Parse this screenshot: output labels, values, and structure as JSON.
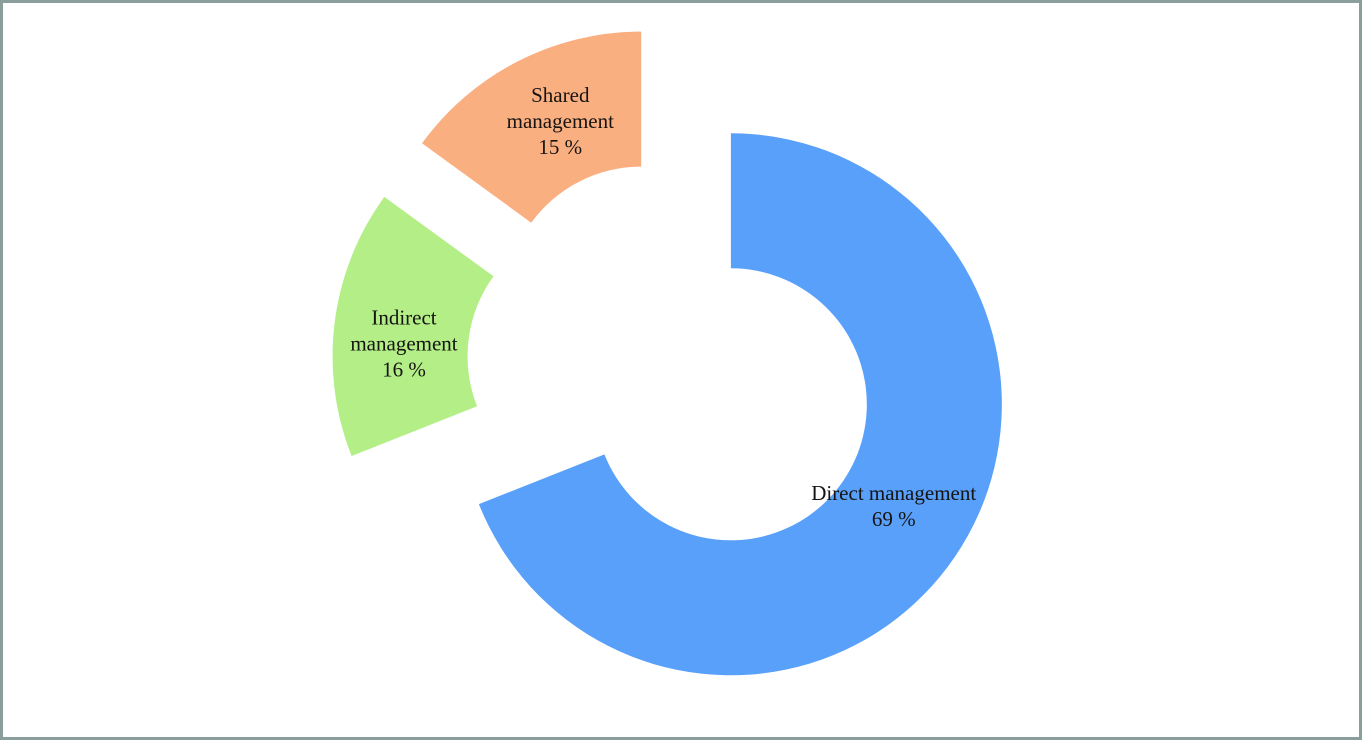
{
  "figure": {
    "background": "#ffffff",
    "border_color": "#8a9e9b"
  },
  "chart_data": {
    "type": "pie",
    "variant": "exploded-doughnut",
    "title": "",
    "direction": "clockwise",
    "start_angle_deg": 0,
    "hole_ratio": 0.5,
    "explode": true,
    "legend": "none",
    "data_labels": "inside-slice",
    "categories": [
      "Direct management",
      "Indirect management",
      "Shared management"
    ],
    "values": [
      69,
      16,
      15
    ],
    "unit": "%",
    "segments": [
      {
        "label": "Direct management",
        "value": 69,
        "color": "#58a0fa",
        "label_lines": [
          "Direct management",
          "69 %"
        ]
      },
      {
        "label": "Indirect management",
        "value": 16,
        "color": "#b3ee86",
        "label_lines": [
          "Indirect",
          "management",
          "16 %"
        ]
      },
      {
        "label": "Shared management",
        "value": 15,
        "color": "#faaf80",
        "label_lines": [
          "Shared",
          "management",
          "15 %"
        ]
      }
    ],
    "label_color": "#161412"
  }
}
